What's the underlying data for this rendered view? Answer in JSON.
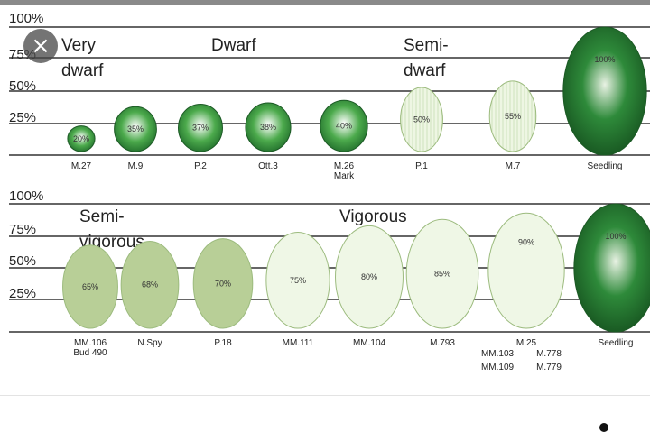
{
  "chart_data": [
    {
      "type": "bar",
      "yticks": [
        "100%",
        "75%",
        "50%",
        "25%"
      ],
      "ylim": [
        0,
        100
      ],
      "grid": true,
      "groups": [
        {
          "label_lines": [
            "Very",
            "dwarf"
          ]
        },
        {
          "label_lines": [
            "Dwarf"
          ]
        },
        {
          "label_lines": [
            "Semi-",
            "dwarf"
          ]
        }
      ],
      "items": [
        {
          "category": [
            "M.27"
          ],
          "value": 20,
          "label": "20%",
          "style": "dwarf"
        },
        {
          "category": [
            "M.9"
          ],
          "value": 35,
          "label": "35%",
          "style": "dwarf"
        },
        {
          "category": [
            "P.2"
          ],
          "value": 37,
          "label": "37%",
          "style": "dwarf"
        },
        {
          "category": [
            "Ott.3"
          ],
          "value": 38,
          "label": "38%",
          "style": "dwarf"
        },
        {
          "category": [
            "M.26",
            "Mark"
          ],
          "value": 40,
          "label": "40%",
          "style": "dwarf"
        },
        {
          "category": [
            "P.1"
          ],
          "value": 50,
          "label": "50%",
          "style": "semi-dwarf"
        },
        {
          "category": [
            "M.7"
          ],
          "value": 55,
          "label": "55%",
          "style": "semi-dwarf"
        },
        {
          "category": [
            "Seedling"
          ],
          "value": 100,
          "label": "100%",
          "style": "seedling"
        }
      ]
    },
    {
      "type": "bar",
      "yticks": [
        "100%",
        "75%",
        "50%",
        "25%"
      ],
      "ylim": [
        0,
        100
      ],
      "grid": true,
      "groups": [
        {
          "label_lines": [
            "Semi-",
            "vigorous"
          ]
        },
        {
          "label_lines": [
            "Vigorous"
          ]
        }
      ],
      "items": [
        {
          "category": [
            "MM.106",
            "Bud 490"
          ],
          "value": 65,
          "label": "65%",
          "style": "semi-vigorous"
        },
        {
          "category": [
            "N.Spy"
          ],
          "value": 68,
          "label": "68%",
          "style": "semi-vigorous"
        },
        {
          "category": [
            "P.18"
          ],
          "value": 70,
          "label": "70%",
          "style": "semi-vigorous"
        },
        {
          "category": [
            "MM.111"
          ],
          "value": 75,
          "label": "75%",
          "style": "vigorous"
        },
        {
          "category": [
            "MM.104"
          ],
          "value": 80,
          "label": "80%",
          "style": "vigorous"
        },
        {
          "category": [
            "M.793"
          ],
          "value": 85,
          "label": "85%",
          "style": "vigorous"
        },
        {
          "category": [
            "M.25"
          ],
          "value": 90,
          "label": "90%",
          "style": "vigorous",
          "extra_labels": [
            "MM.103",
            "M.778",
            "MM.109",
            "M.779"
          ]
        },
        {
          "category": [
            "Seedling"
          ],
          "value": 100,
          "label": "100%",
          "style": "seedling"
        }
      ]
    }
  ],
  "colors": {
    "dwarf": "#3f9a3f",
    "semi-dwarf": "#eef6e3",
    "semi-vigorous": "#b8cf97",
    "vigorous": "#eff7e6",
    "seedling": "#1f6b2a",
    "grid": "#333333"
  },
  "ui": {
    "close_icon": "×"
  }
}
